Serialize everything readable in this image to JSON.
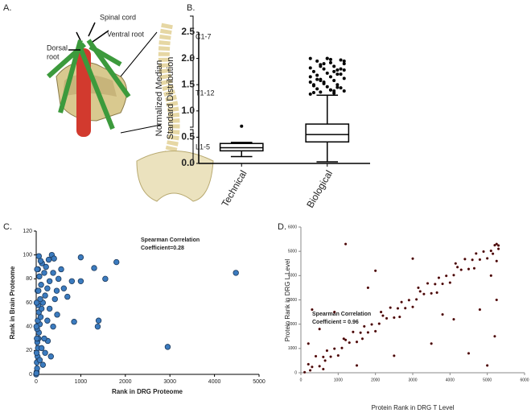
{
  "panel_labels": [
    "A.",
    "B.",
    "C.",
    "D."
  ],
  "illustration": {
    "labels": [
      "Spinal cord",
      "Ventral root",
      "Dorsal",
      "root",
      "C1-7",
      "T1-12",
      "L1-5"
    ]
  },
  "chart_data": [
    {
      "type": "box",
      "ylabel": [
        "Normalized Median",
        "Standard Distribution"
      ],
      "categories": [
        "Technical",
        "Biological"
      ],
      "boxes": [
        {
          "min": 0.13,
          "q1": 0.24,
          "median": 0.3,
          "q3": 0.38,
          "max": 0.4,
          "outliers": [
            0.71
          ]
        },
        {
          "min": 0.03,
          "q1": 0.41,
          "median": 0.55,
          "q3": 0.75,
          "max": 1.3,
          "outliers": [
            1.32,
            1.34,
            1.36,
            1.38,
            1.4,
            1.42,
            1.44,
            1.46,
            1.48,
            1.5,
            1.52,
            1.55,
            1.58,
            1.6,
            1.62,
            1.65,
            1.68,
            1.7,
            1.72,
            1.75,
            1.78,
            1.8,
            1.82,
            1.85,
            1.88,
            1.9,
            1.92,
            1.95,
            1.97,
            2.0,
            1.35,
            1.45,
            1.55,
            1.65,
            1.75,
            1.85,
            1.95,
            1.4,
            1.6,
            1.8,
            2.0,
            1.5,
            1.7,
            1.9,
            2.0,
            1.38,
            1.58,
            1.78,
            1.98
          ]
        }
      ],
      "ylim": [
        0,
        2.5
      ],
      "yticks": [
        {
          "value": 0,
          "label": "0.0"
        },
        0.5,
        {
          "value": 1,
          "label": "1.0"
        },
        1.5,
        {
          "value": 2,
          "label": "2.0"
        },
        2.5
      ],
      "color": "#000000"
    },
    {
      "type": "scatter",
      "xlabel": "Rank in DRG Proteome",
      "ylabel": "Rank in Brain Proteome",
      "annotation": [
        "Spearman Correlation",
        "Coefficient=0.28"
      ],
      "color": "#3b7bbf",
      "x": [
        10,
        20,
        15,
        30,
        10,
        40,
        25,
        50,
        60,
        20,
        80,
        35,
        100,
        60,
        120,
        45,
        150,
        90,
        200,
        30,
        250,
        110,
        300,
        70,
        180,
        40,
        220,
        130,
        280,
        60,
        350,
        400,
        150,
        200,
        260,
        330,
        380,
        300,
        420,
        460,
        500,
        560,
        100,
        380,
        470,
        250,
        180,
        120,
        80,
        50,
        20,
        10,
        5,
        15,
        1000,
        1300,
        1550,
        1800,
        800,
        1000,
        850,
        1380,
        1400,
        2950,
        4480,
        0,
        5,
        620,
        700
      ],
      "values": [
        2,
        5,
        10,
        15,
        18,
        22,
        27,
        30,
        35,
        38,
        42,
        45,
        48,
        52,
        55,
        58,
        60,
        63,
        66,
        70,
        72,
        75,
        78,
        82,
        85,
        88,
        90,
        93,
        96,
        99,
        100,
        97,
        8,
        18,
        28,
        15,
        40,
        55,
        63,
        70,
        80,
        88,
        95,
        85,
        50,
        45,
        30,
        22,
        12,
        70,
        88,
        60,
        40,
        30,
        98,
        89,
        80,
        94,
        78,
        78,
        44,
        40,
        45,
        23,
        85,
        0,
        1,
        72,
        65
      ],
      "xlim": [
        0,
        5000
      ],
      "xticks": [
        0,
        1000,
        2000,
        3000,
        4000,
        5000
      ],
      "ylim": [
        0,
        120
      ],
      "yticks": [
        0,
        20,
        40,
        60,
        80,
        100,
        120
      ]
    },
    {
      "type": "scatter",
      "xlabel": "Protein Rank in DRG T Level",
      "ylabel": "Protein Rank in DRG L Level",
      "annotation": [
        "Spearman Correlation",
        "Coefficient = 0.96"
      ],
      "color": "#3a0a0a",
      "x": [
        100,
        200,
        300,
        400,
        500,
        600,
        700,
        800,
        900,
        1000,
        1100,
        1200,
        1300,
        1400,
        1500,
        1600,
        1700,
        1800,
        1900,
        2000,
        2100,
        2200,
        2300,
        2400,
        2500,
        2600,
        2700,
        2800,
        2900,
        3000,
        3100,
        3200,
        3300,
        3400,
        3500,
        3600,
        3700,
        3800,
        3900,
        4000,
        4100,
        4200,
        4300,
        4400,
        4500,
        4600,
        4700,
        4800,
        4900,
        5000,
        5100,
        5200,
        5300,
        250,
        650,
        1150,
        1650,
        2150,
        2650,
        3150,
        3650,
        4150,
        4650,
        5150,
        5250,
        5300,
        5250,
        1200,
        300,
        500,
        2500,
        3500,
        4500,
        5000,
        900,
        4100,
        5200,
        1800,
        2000,
        3000,
        4800,
        600,
        5100,
        5250,
        200,
        1500,
        3800
      ],
      "values": [
        20,
        350,
        240,
        680,
        270,
        650,
        910,
        660,
        990,
        710,
        1020,
        1350,
        1240,
        1680,
        1270,
        1650,
        1910,
        1660,
        1990,
        1710,
        2020,
        2350,
        2240,
        2680,
        2270,
        2650,
        2910,
        2660,
        2990,
        2710,
        3020,
        3350,
        3240,
        3680,
        3270,
        3650,
        3910,
        3660,
        3990,
        3710,
        4020,
        4350,
        4240,
        4680,
        4270,
        4650,
        4910,
        4660,
        4990,
        4710,
        5020,
        5250,
        5240,
        100,
        500,
        1400,
        1400,
        2500,
        2300,
        3500,
        3300,
        4500,
        4300,
        4900,
        5300,
        5100,
        4600,
        5300,
        2600,
        1800,
        700,
        1200,
        800,
        300,
        2500,
        2200,
        1500,
        3500,
        4200,
        4700,
        2600,
        150,
        4000,
        3000,
        1200,
        300,
        2400
      ],
      "xlim": [
        0,
        6000
      ],
      "xticks": [
        0,
        1000,
        2000,
        3000,
        4000,
        5000,
        6000
      ],
      "ylim": [
        0,
        6000
      ],
      "yticks": [
        0,
        1000,
        2000,
        3000,
        4000,
        5000,
        6000
      ]
    }
  ]
}
